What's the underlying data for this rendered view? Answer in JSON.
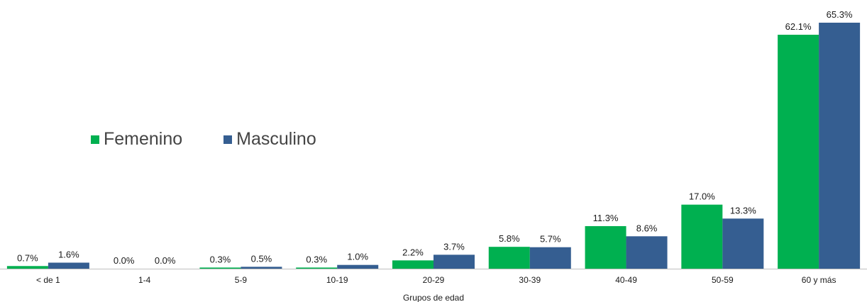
{
  "chart_data": {
    "type": "bar",
    "xlabel": "Grupos de edad",
    "ylabel": "",
    "ylim": [
      0,
      70
    ],
    "grid": false,
    "legend_position": "middle-left",
    "categories": [
      "< de 1",
      "1-4",
      "5-9",
      "10-19",
      "20-29",
      "30-39",
      "40-49",
      "50-59",
      "60 y más"
    ],
    "series": [
      {
        "name": "Femenino",
        "color": "#00b050",
        "values": [
          0.7,
          0.0,
          0.3,
          0.3,
          2.2,
          5.8,
          11.3,
          17.0,
          62.1
        ],
        "labels": [
          "0.7%",
          "0.0%",
          "0.3%",
          "0.3%",
          "2.2%",
          "5.8%",
          "11.3%",
          "17.0%",
          "62.1%"
        ]
      },
      {
        "name": "Masculino",
        "color": "#355e91",
        "values": [
          1.6,
          0.0,
          0.5,
          1.0,
          3.7,
          5.7,
          8.6,
          13.3,
          65.3
        ],
        "labels": [
          "1.6%",
          "0.0%",
          "0.5%",
          "1.0%",
          "3.7%",
          "5.7%",
          "8.6%",
          "13.3%",
          "65.3%"
        ]
      }
    ]
  }
}
